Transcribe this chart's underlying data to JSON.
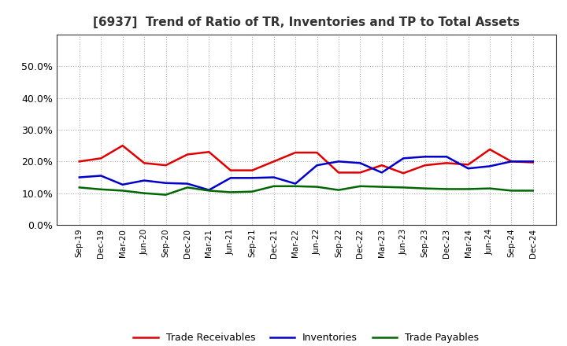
{
  "title": "[6937]  Trend of Ratio of TR, Inventories and TP to Total Assets",
  "x_labels": [
    "Sep-19",
    "Dec-19",
    "Mar-20",
    "Jun-20",
    "Sep-20",
    "Dec-20",
    "Mar-21",
    "Jun-21",
    "Sep-21",
    "Dec-21",
    "Mar-22",
    "Jun-22",
    "Sep-22",
    "Dec-22",
    "Mar-23",
    "Jun-23",
    "Sep-23",
    "Dec-23",
    "Mar-24",
    "Jun-24",
    "Sep-24",
    "Dec-24"
  ],
  "trade_receivables": [
    0.2,
    0.21,
    0.25,
    0.195,
    0.188,
    0.222,
    0.23,
    0.172,
    0.172,
    0.2,
    0.228,
    0.228,
    0.165,
    0.165,
    0.188,
    0.163,
    0.188,
    0.195,
    0.19,
    0.238,
    0.2,
    0.197
  ],
  "inventories": [
    0.15,
    0.155,
    0.127,
    0.14,
    0.132,
    0.13,
    0.11,
    0.148,
    0.148,
    0.15,
    0.13,
    0.188,
    0.2,
    0.195,
    0.165,
    0.21,
    0.215,
    0.215,
    0.178,
    0.185,
    0.2,
    0.2
  ],
  "trade_payables": [
    0.118,
    0.112,
    0.108,
    0.1,
    0.095,
    0.118,
    0.108,
    0.103,
    0.105,
    0.122,
    0.122,
    0.12,
    0.11,
    0.122,
    0.12,
    0.118,
    0.115,
    0.113,
    0.113,
    0.115,
    0.108,
    0.108
  ],
  "tr_color": "#e00000",
  "inv_color": "#0000cc",
  "tp_color": "#006600",
  "ylim": [
    0.0,
    0.6
  ],
  "yticks": [
    0.0,
    0.1,
    0.2,
    0.3,
    0.4,
    0.5
  ],
  "background_color": "#ffffff",
  "grid_color": "#999999",
  "legend_labels": [
    "Trade Receivables",
    "Inventories",
    "Trade Payables"
  ]
}
